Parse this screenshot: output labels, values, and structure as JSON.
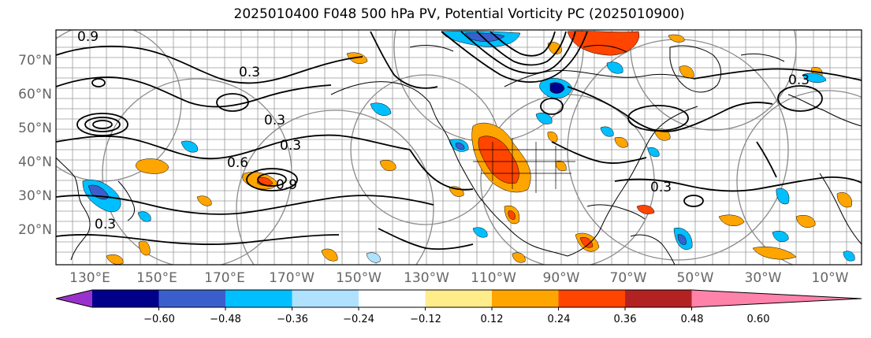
{
  "title": "2025010400 F048 500 hPa PV, Potential Vorticity PC (2025010900)",
  "lat_labels": [
    "70°N",
    "60°N",
    "50°N",
    "40°N",
    "30°N",
    "20°N"
  ],
  "lon_labels": [
    "130°E",
    "150°E",
    "170°E",
    "170°W",
    "150°W",
    "130°W",
    "110°W",
    "90°W",
    "70°W",
    "50°W",
    "30°W",
    "10°W"
  ],
  "contour_labels": [
    "0.9",
    "0.3",
    "0.3",
    "0.3",
    "0.9",
    "0.3",
    "0.3",
    "0.6",
    "0.3"
  ],
  "colorbar": {
    "tick_labels": [
      "−0.60",
      "−0.48",
      "−0.36",
      "−0.24",
      "−0.12",
      "0.12",
      "0.24",
      "0.36",
      "0.48",
      "0.60"
    ],
    "colors": [
      "#9932cc",
      "#00008b",
      "#3a5fcd",
      "#00bfff",
      "#b0e2ff",
      "#ffffff",
      "#ffec8b",
      "#ffa500",
      "#ff4500",
      "#b22222",
      "#ff82ab"
    ]
  }
}
